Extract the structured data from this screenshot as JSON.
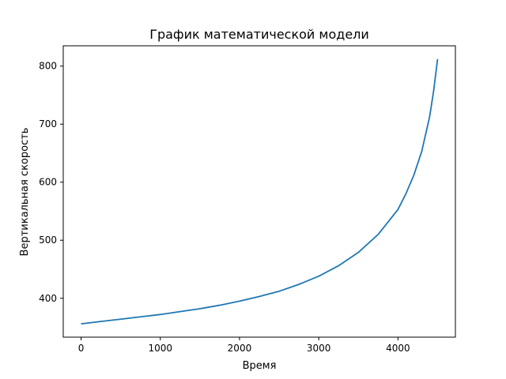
{
  "chart_data": {
    "type": "line",
    "title": "График математической модели",
    "xlabel": "Время",
    "ylabel": "Вертикальная скорость",
    "xlim": [
      -225,
      4725
    ],
    "ylim": [
      333,
      835
    ],
    "xticks": [
      0,
      1000,
      2000,
      3000,
      4000
    ],
    "yticks": [
      400,
      500,
      600,
      700,
      800
    ],
    "grid": false,
    "series": [
      {
        "color": "#1f77b4",
        "x": [
          0,
          250,
          500,
          750,
          1000,
          1250,
          1500,
          1750,
          2000,
          2250,
          2500,
          2750,
          3000,
          3250,
          3500,
          3750,
          4000,
          4100,
          4200,
          4300,
          4400,
          4450,
          4500
        ],
        "values": [
          356,
          360,
          364,
          368,
          372,
          377,
          382,
          388,
          395,
          403,
          412,
          424,
          438,
          456,
          479,
          510,
          553,
          580,
          612,
          653,
          713,
          757,
          812
        ]
      }
    ]
  }
}
